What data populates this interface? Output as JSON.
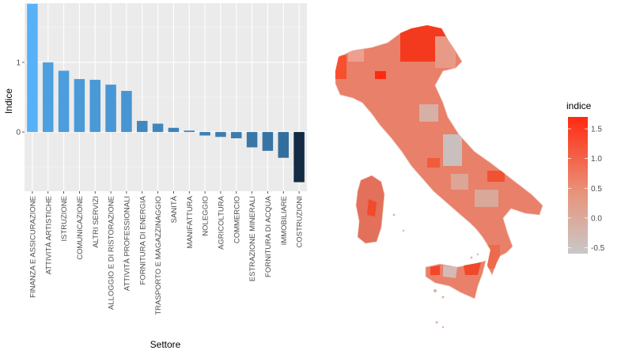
{
  "chart_data": [
    {
      "type": "bar",
      "xlabel": "Settore",
      "ylabel": "Indice",
      "ylim": [
        -0.85,
        1.85
      ],
      "yticks": [
        0,
        1
      ],
      "grid": true,
      "colors": {
        "positive": "#56B1F7",
        "negative": "#132B43",
        "panel": "#EBEBEB",
        "grid": "#FFFFFF"
      },
      "categories": [
        "FINANZA E ASSICURAZIONE",
        "ATTIVITÀ ARTISTICHE",
        "ISTRUZIONE",
        "COMUNICAZIONE",
        "ALTRI SERVIZI",
        "ALLOGGIO E DI RISTORAZIONE",
        "ATTIVITÀ PROFESSIONALI",
        "FORNITURA DI ENERGIA",
        "TRASPORTO E MAGAZZINAGGIO",
        "SANITÀ",
        "MANIFATTURA",
        "NOLEGGIO",
        "AGRICOLTURA",
        "COMMERCIO",
        "ESTRAZIONE MINERALI",
        "FORNITURA DI ACQUA",
        "IMMOBILIARE",
        "COSTRUZIONI"
      ],
      "values": [
        1.84,
        1.0,
        0.88,
        0.76,
        0.75,
        0.68,
        0.59,
        0.16,
        0.12,
        0.06,
        0.02,
        -0.05,
        -0.07,
        -0.09,
        -0.22,
        -0.27,
        -0.37,
        -0.72
      ]
    },
    {
      "type": "choropleth",
      "legend_title": "indice",
      "legend_ticks": [
        1.5,
        1.0,
        0.5,
        0.0,
        -0.5
      ],
      "legend_range": [
        -0.6,
        1.7
      ],
      "colors": {
        "low": "#C8C8C8",
        "mid": "#E8937A",
        "high": "#FF2A10"
      }
    }
  ]
}
